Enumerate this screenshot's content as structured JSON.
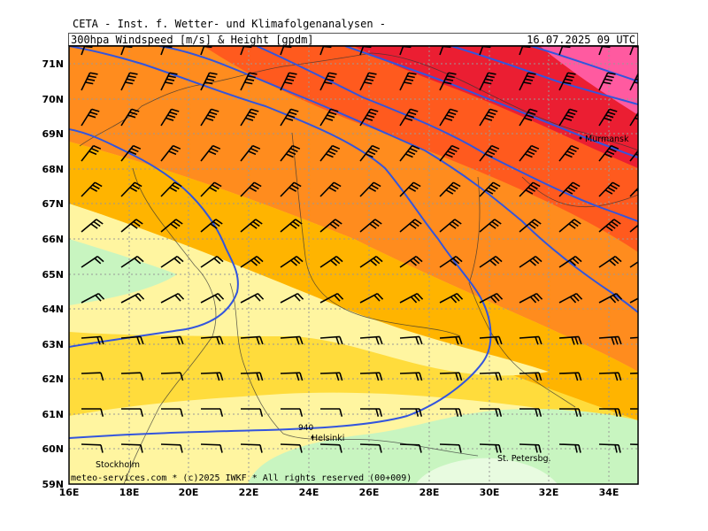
{
  "header": {
    "institute": "CETA - Inst. f. Wetter- und Klimafolgenanalysen -",
    "variable": "300hpa Windspeed [m/s] & Height [gpdm]",
    "date": "16.07.2025 09 UTC"
  },
  "map": {
    "lat_labels": [
      "71N",
      "70N",
      "69N",
      "68N",
      "67N",
      "66N",
      "65N",
      "64N",
      "63N",
      "62N",
      "61N",
      "60N",
      "59N"
    ],
    "lon_labels": [
      "16E",
      "18E",
      "20E",
      "22E",
      "24E",
      "26E",
      "28E",
      "30E",
      "32E",
      "34E"
    ],
    "lat_range": [
      59,
      71.4
    ],
    "lon_range": [
      16,
      35
    ],
    "contour_label": "940",
    "cities": [
      {
        "name": "Murmansk",
        "lon": 33.1,
        "lat": 68.9
      },
      {
        "name": "Helsinki",
        "lon": 24.9,
        "lat": 60.2
      },
      {
        "name": "Stockholm",
        "lon": 18.1,
        "lat": 59.3
      },
      {
        "name": "St. Petersbg.",
        "lon": 30.3,
        "lat": 59.9
      }
    ],
    "credit": "meteo-services.com * (c)2025 IWKF * All rights reserved (00+009)",
    "colors": {
      "light_green": "#c8f5c0",
      "pale_yellow": "#fff5a0",
      "yellow": "#ffdc3c",
      "gold": "#ffb400",
      "orange": "#ff8c1e",
      "dark_orange": "#ff5a1e",
      "red": "#eb1e32",
      "pink": "#ff5aa0",
      "height_contour": "#3355dd",
      "grid": "#999999"
    }
  }
}
